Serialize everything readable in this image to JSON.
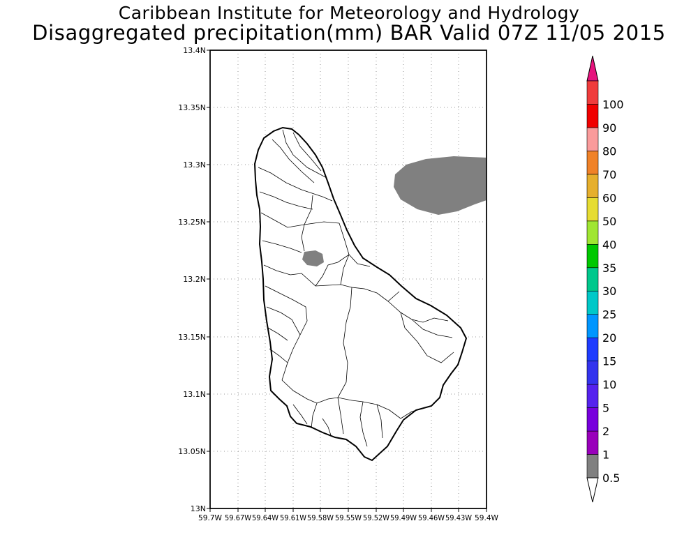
{
  "title": {
    "line1": "Caribbean Institute for Meteorology and Hydrology",
    "line2": "Disaggregated precipitation(mm) BAR Valid 07Z 11/05 2015"
  },
  "map": {
    "region": "Barbados",
    "lat_ticks": [
      "13.4N",
      "13.35N",
      "13.3N",
      "13.25N",
      "13.2N",
      "13.15N",
      "13.1N",
      "13.05N",
      "13N"
    ],
    "lon_ticks": [
      "59.7W",
      "59.67W",
      "59.64W",
      "59.61W",
      "59.58W",
      "59.55W",
      "59.52W",
      "59.49W",
      "59.46W",
      "59.43W",
      "59.4W"
    ],
    "precip_areas": [
      {
        "location": "offshore north-east",
        "category": "0.5-1 mm",
        "color": "#808080"
      },
      {
        "location": "inland north-central",
        "category": "0.5-1 mm",
        "color": "#808080"
      }
    ],
    "grid": true
  },
  "legend": {
    "labels": [
      "0.5",
      "1",
      "2",
      "5",
      "10",
      "15",
      "20",
      "25",
      "30",
      "35",
      "40",
      "50",
      "60",
      "70",
      "80",
      "90",
      "100"
    ],
    "colors": [
      "#808080",
      "#9900bb",
      "#7700dd",
      "#5522ee",
      "#3333ee",
      "#1e3cff",
      "#0096ff",
      "#00c8c8",
      "#00c88c",
      "#00c800",
      "#a0e632",
      "#e6dc32",
      "#e6af2d",
      "#f08228",
      "#fa9b9b",
      "#f00000",
      "#f03c3c"
    ],
    "top_arrow_color": "#e6137d",
    "bottom_arrow_color": "#ffffff"
  }
}
